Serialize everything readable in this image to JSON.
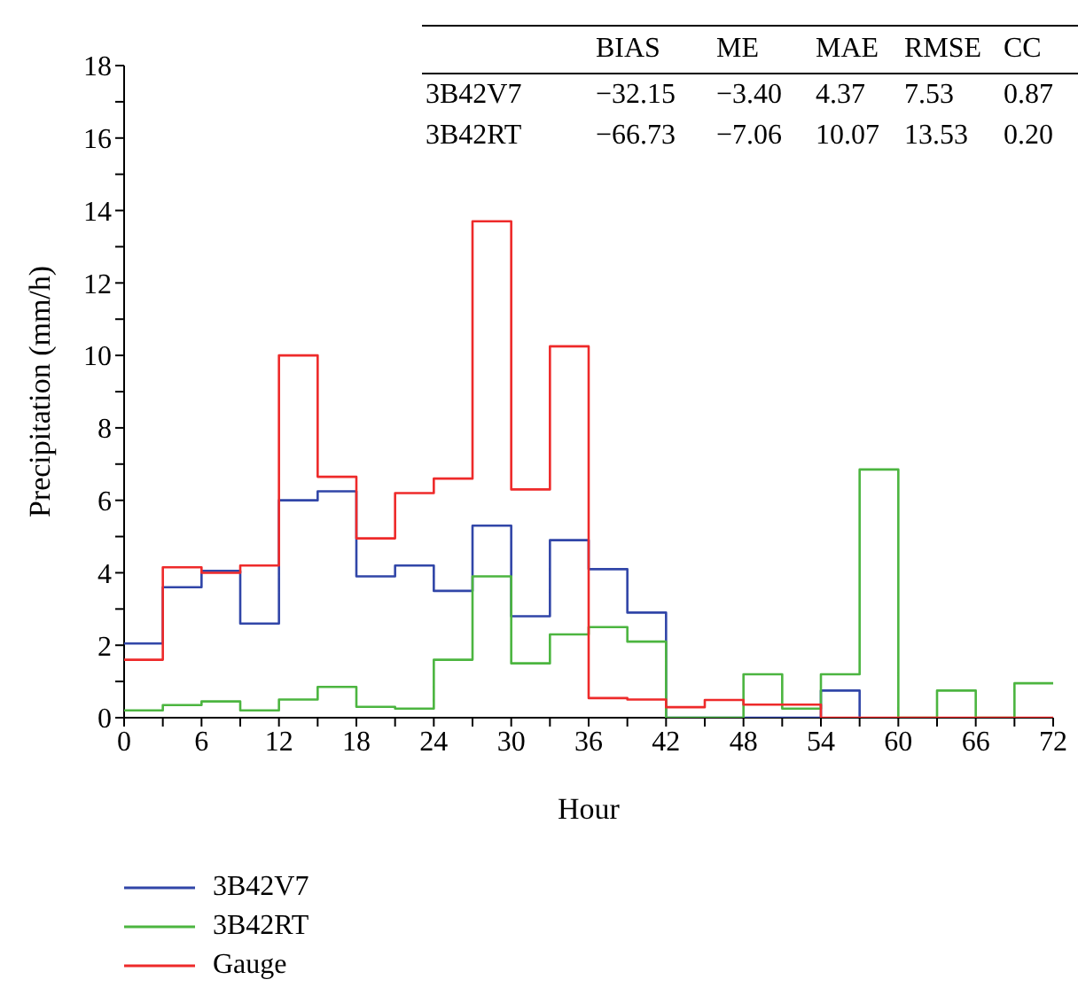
{
  "chart_data": {
    "type": "step",
    "xlabel": "Hour",
    "ylabel": "Precipitation (mm/h)",
    "x": [
      0,
      3,
      6,
      9,
      12,
      15,
      18,
      21,
      24,
      27,
      30,
      33,
      36,
      39,
      42,
      45,
      48,
      51,
      54,
      57,
      60,
      63,
      66,
      69,
      72
    ],
    "series": [
      {
        "name": "3B42V7",
        "color": "#3146a8",
        "values": [
          2.05,
          3.6,
          4.05,
          2.6,
          6.0,
          6.25,
          3.9,
          4.2,
          3.5,
          5.3,
          2.8,
          4.9,
          4.1,
          2.9,
          0,
          0,
          0,
          0,
          0.75,
          0,
          null,
          null,
          null,
          null,
          null
        ]
      },
      {
        "name": "3B42RT",
        "color": "#4cb540",
        "values": [
          0.2,
          0.35,
          0.45,
          0.2,
          0.5,
          0.85,
          0.3,
          0.25,
          1.6,
          3.9,
          1.5,
          2.3,
          2.5,
          2.1,
          0,
          0,
          1.2,
          0.25,
          1.2,
          6.85,
          0,
          0.75,
          0,
          0.95,
          0.95
        ]
      },
      {
        "name": "Gauge",
        "color": "#ee2a2a",
        "values": [
          1.6,
          4.15,
          4.0,
          4.2,
          10.0,
          6.65,
          4.95,
          6.2,
          6.6,
          13.7,
          6.3,
          10.25,
          0.54,
          0.5,
          0.29,
          0.49,
          0.36,
          0.36,
          0,
          0,
          0,
          0,
          0,
          0,
          0
        ]
      }
    ],
    "xlim": [
      0,
      72
    ],
    "xticks": [
      0,
      {
        "value": 3,
        "label": null
      },
      6,
      {
        "value": 9,
        "label": null
      },
      12,
      {
        "value": 15,
        "label": null
      },
      18,
      {
        "value": 21,
        "label": null
      },
      24,
      {
        "value": 27,
        "label": null
      },
      30,
      {
        "value": 33,
        "label": null
      },
      36,
      {
        "value": 39,
        "label": null
      },
      42,
      {
        "value": 45,
        "label": null
      },
      48,
      {
        "value": 51,
        "label": null
      },
      54,
      {
        "value": 57,
        "label": null
      },
      60,
      {
        "value": 63,
        "label": null
      },
      66,
      {
        "value": 69,
        "label": null
      },
      72
    ],
    "ylim": [
      0,
      18
    ],
    "yticks": [
      0,
      {
        "value": 1,
        "label": null
      },
      2,
      {
        "value": 3,
        "label": null
      },
      4,
      {
        "value": 5,
        "label": null
      },
      6,
      {
        "value": 7,
        "label": null
      },
      8,
      {
        "value": 9,
        "label": null
      },
      10,
      {
        "value": 11,
        "label": null
      },
      12,
      {
        "value": 13,
        "label": null
      },
      14,
      {
        "value": 15,
        "label": null
      },
      16,
      {
        "value": 17,
        "label": null
      },
      18
    ],
    "grid": false,
    "legend": "bottom left",
    "marker": "none",
    "line_style": "solid",
    "annotations": [
      "BIAS",
      "ME",
      "MAE",
      "RMSE",
      "CC",
      "3B42V7",
      "−32.15",
      "−3.40",
      "4.37",
      "7.53",
      "0.87",
      "3B42RT",
      "−66.73",
      "−7.06",
      "10.07",
      "13.53",
      "0.20"
    ]
  }
}
